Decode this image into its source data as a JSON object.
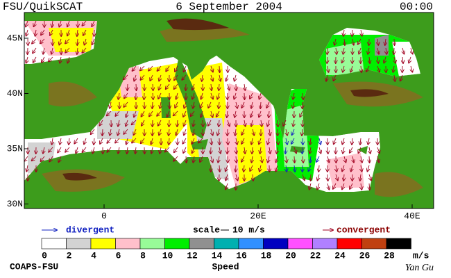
{
  "header": {
    "title": "FSU/QuikSCAT",
    "date": "6 September 2004",
    "time": "00:00"
  },
  "map": {
    "lat_ticks": [
      {
        "value": 45,
        "label": "45N"
      },
      {
        "value": 40,
        "label": "40N"
      },
      {
        "value": 35,
        "label": "35N"
      },
      {
        "value": 30,
        "label": "30N"
      }
    ],
    "lon_ticks": [
      0,
      {
        "value": 20,
        "label": "20E"
      },
      {
        "value": 40,
        "label": "40E"
      }
    ]
  },
  "legend": {
    "divergent": "divergent",
    "scale": "scale",
    "scale_value": "10 m/s",
    "convergent": "convergent"
  },
  "colorbar": {
    "ticks": [
      0,
      2,
      4,
      6,
      8,
      10,
      12,
      14,
      16,
      18,
      20,
      22,
      24,
      26,
      28
    ],
    "colors": [
      "#ffffff",
      "#d3d3d3",
      "#ffff00",
      "#ffc0cb",
      "#98fb98",
      "#00ee00",
      "#909090",
      "#00b0b0",
      "#3090ff",
      "#0000c0",
      "#ff50ff",
      "#b080ff",
      "#ff0000",
      "#c04010",
      "#000000"
    ],
    "unit": "m/s",
    "label": "Speed"
  },
  "footer": {
    "source": "COAPS-FSU",
    "author": "Yan Gu"
  }
}
